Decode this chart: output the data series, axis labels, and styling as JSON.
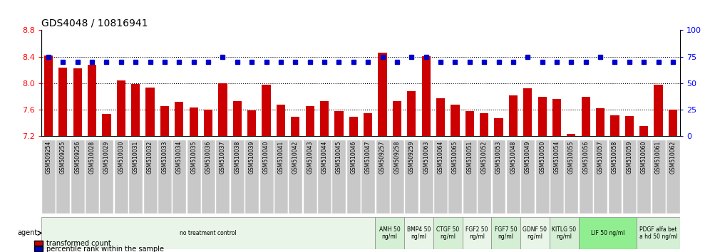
{
  "title": "GDS4048 / 10816941",
  "ylim_left": [
    7.2,
    8.8
  ],
  "ylim_right": [
    0,
    100
  ],
  "yticks_left": [
    7.2,
    7.6,
    8.0,
    8.4,
    8.8
  ],
  "yticks_right": [
    0,
    25,
    50,
    75,
    100
  ],
  "bar_color": "#cc0000",
  "dot_color": "#0000cc",
  "categories": [
    "GSM509254",
    "GSM509255",
    "GSM509256",
    "GSM510028",
    "GSM510029",
    "GSM510030",
    "GSM510031",
    "GSM510032",
    "GSM510033",
    "GSM510034",
    "GSM510035",
    "GSM510036",
    "GSM510037",
    "GSM510038",
    "GSM510039",
    "GSM510040",
    "GSM510041",
    "GSM510042",
    "GSM510043",
    "GSM510044",
    "GSM510045",
    "GSM510046",
    "GSM510047",
    "GSM509257",
    "GSM509258",
    "GSM509259",
    "GSM510063",
    "GSM510064",
    "GSM510065",
    "GSM510051",
    "GSM510052",
    "GSM510053",
    "GSM510048",
    "GSM510049",
    "GSM510050",
    "GSM510054",
    "GSM510055",
    "GSM510056",
    "GSM510057",
    "GSM510058",
    "GSM510059",
    "GSM510060",
    "GSM510061",
    "GSM510062"
  ],
  "bar_values": [
    8.42,
    8.24,
    8.22,
    8.28,
    7.53,
    8.04,
    7.99,
    7.93,
    7.65,
    7.72,
    7.63,
    7.6,
    8.0,
    7.73,
    7.59,
    7.98,
    7.67,
    7.49,
    7.65,
    7.73,
    7.58,
    7.49,
    7.55,
    8.46,
    7.73,
    7.88,
    8.41,
    7.77,
    7.67,
    7.58,
    7.55,
    7.47,
    7.82,
    7.92,
    7.79,
    7.76,
    7.23,
    7.79,
    7.62,
    7.51,
    7.5,
    7.35,
    7.98,
    7.6
  ],
  "dot_values_pct": [
    75,
    70,
    70,
    70,
    70,
    70,
    70,
    70,
    70,
    70,
    70,
    70,
    75,
    70,
    70,
    70,
    70,
    70,
    70,
    70,
    70,
    70,
    70,
    75,
    70,
    75,
    75,
    70,
    70,
    70,
    70,
    70,
    70,
    75,
    70,
    70,
    70,
    70,
    75,
    70,
    70,
    70,
    70,
    70
  ],
  "agent_groups": [
    {
      "label": "no treatment control",
      "start": 0,
      "end": 23,
      "color": "#e8f5e8"
    },
    {
      "label": "AMH 50\nng/ml",
      "start": 23,
      "end": 25,
      "color": "#d4efd4"
    },
    {
      "label": "BMP4 50\nng/ml",
      "start": 25,
      "end": 27,
      "color": "#e8f5e8"
    },
    {
      "label": "CTGF 50\nng/ml",
      "start": 27,
      "end": 29,
      "color": "#d4efd4"
    },
    {
      "label": "FGF2 50\nng/ml",
      "start": 29,
      "end": 31,
      "color": "#e8f5e8"
    },
    {
      "label": "FGF7 50\nng/ml",
      "start": 31,
      "end": 33,
      "color": "#d4efd4"
    },
    {
      "label": "GDNF 50\nng/ml",
      "start": 33,
      "end": 35,
      "color": "#e8f5e8"
    },
    {
      "label": "KITLG 50\nng/ml",
      "start": 35,
      "end": 37,
      "color": "#d4efd4"
    },
    {
      "label": "LIF 50 ng/ml",
      "start": 37,
      "end": 41,
      "color": "#90ee90"
    },
    {
      "label": "PDGF alfa bet\na hd 50 ng/ml",
      "start": 41,
      "end": 44,
      "color": "#d4efd4"
    }
  ],
  "legend_transformed": "transformed count",
  "legend_percentile": "percentile rank within the sample",
  "agent_label": "agent",
  "grid_lines": [
    7.6,
    8.0,
    8.4
  ],
  "xtick_bg_color": "#c8c8c8",
  "xtick_border_color": "#ffffff",
  "spine_color": "#000000"
}
